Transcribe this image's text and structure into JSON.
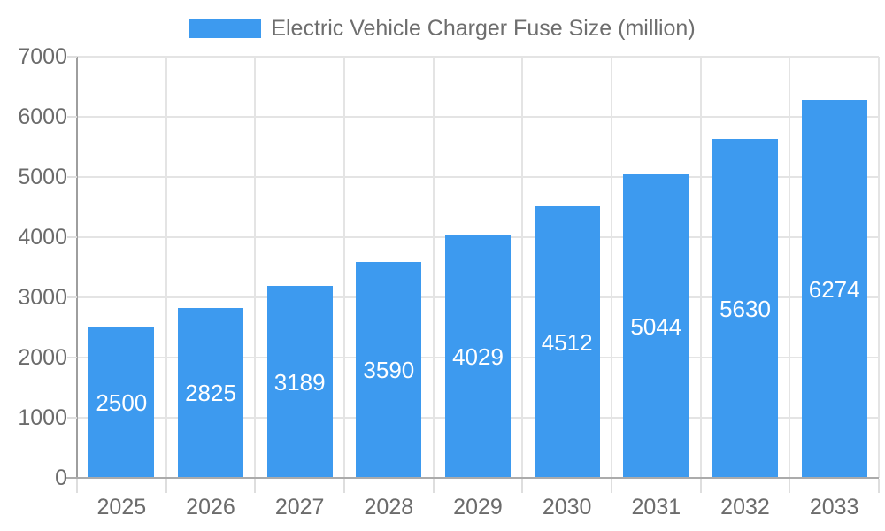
{
  "chart_data": {
    "type": "bar",
    "title": "Electric Vehicle Charger Fuse Size (million)",
    "categories": [
      "2025",
      "2026",
      "2027",
      "2028",
      "2029",
      "2030",
      "2031",
      "2032",
      "2033"
    ],
    "series": [
      {
        "name": "Electric Vehicle Charger Fuse Size (million)",
        "values": [
          2500,
          2825,
          3189,
          3590,
          4029,
          4512,
          5044,
          5630,
          6274
        ]
      }
    ],
    "xlabel": "",
    "ylabel": "",
    "ylim": [
      0,
      7000
    ],
    "ytick_step": 1000,
    "ytick_labels": [
      "0",
      "1000",
      "2000",
      "3000",
      "4000",
      "5000",
      "6000",
      "7000"
    ],
    "grid": true,
    "legend_position": "top-center",
    "value_label_position": "inside-center"
  },
  "colors": {
    "bar": "#3D9AEF",
    "grid": "#E4E4E4",
    "y_axis_line": "#9E9E9E",
    "x_axis_line": "#ABABAB",
    "tick": "#DEDEDE",
    "axis_label_text": "#6B6B6B",
    "legend_text": "#6E6E6E",
    "value_label_text": "#FFFFFF",
    "background": "#FFFFFF"
  }
}
